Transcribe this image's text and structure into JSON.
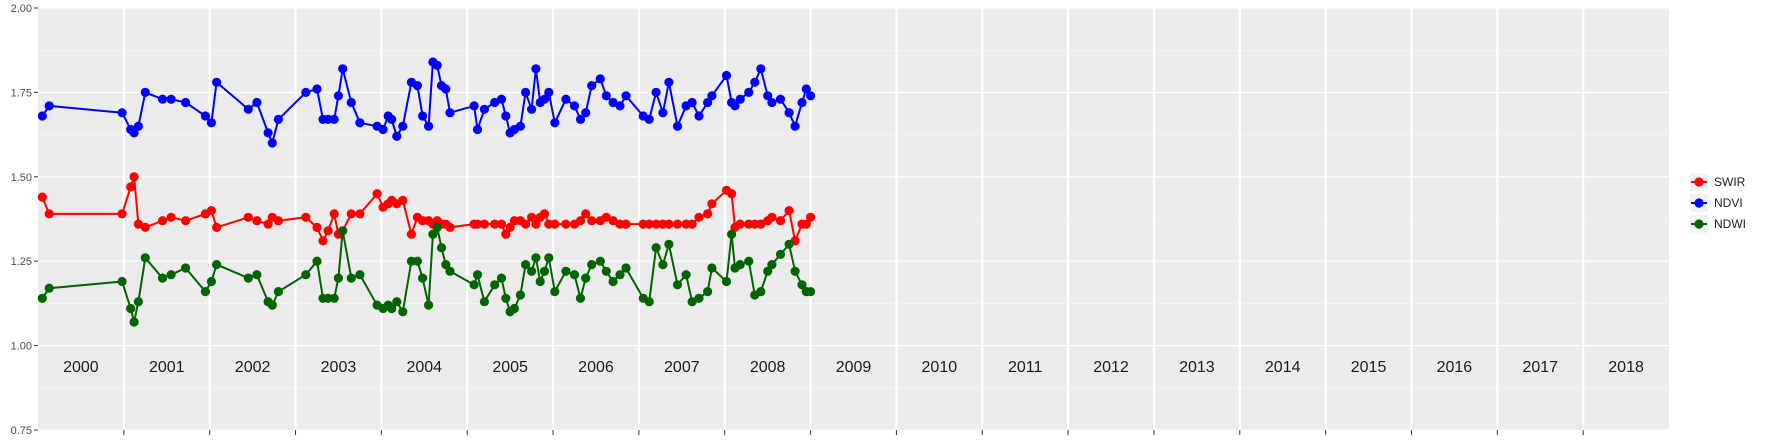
{
  "colors": {
    "panel_bg": "#EBEBEB",
    "grid_major": "#FFFFFF",
    "axis_tick": "#333333",
    "tick_text": "#4D4D4D"
  },
  "chart_data": {
    "type": "line",
    "title": "",
    "xlabel": "",
    "ylabel": "",
    "x_range": [
      2000.0,
      2019.0
    ],
    "ylim": [
      0.75,
      2.0
    ],
    "y_ticks": [
      0.75,
      1.0,
      1.25,
      1.5,
      1.75,
      2.0
    ],
    "y_tick_labels": [
      "0.75",
      "1.00",
      "1.25",
      "1.50",
      "1.75",
      "2.00"
    ],
    "x_year_labels": [
      "2000",
      "2001",
      "2002",
      "2003",
      "2004",
      "2005",
      "2006",
      "2007",
      "2008",
      "2009",
      "2010",
      "2011",
      "2012",
      "2013",
      "2014",
      "2015",
      "2016",
      "2017",
      "2018"
    ],
    "grid": true,
    "legend_position": "right",
    "series": [
      {
        "name": "SWIR",
        "color": "#FF0000",
        "x": [
          2000.05,
          2000.13,
          2000.98,
          2001.08,
          2001.12,
          2001.17,
          2001.25,
          2001.45,
          2001.55,
          2001.72,
          2001.95,
          2002.02,
          2002.08,
          2002.45,
          2002.55,
          2002.68,
          2002.73,
          2002.8,
          2003.12,
          2003.25,
          2003.32,
          2003.38,
          2003.45,
          2003.5,
          2003.55,
          2003.65,
          2003.75,
          2003.95,
          2004.02,
          2004.08,
          2004.12,
          2004.18,
          2004.25,
          2004.35,
          2004.42,
          2004.48,
          2004.55,
          2004.6,
          2004.65,
          2004.7,
          2004.75,
          2004.8,
          2005.08,
          2005.12,
          2005.2,
          2005.32,
          2005.4,
          2005.45,
          2005.5,
          2005.55,
          2005.62,
          2005.68,
          2005.75,
          2005.8,
          2005.85,
          2005.9,
          2005.95,
          2006.02,
          2006.15,
          2006.25,
          2006.32,
          2006.38,
          2006.45,
          2006.55,
          2006.62,
          2006.7,
          2006.78,
          2006.85,
          2007.05,
          2007.12,
          2007.2,
          2007.28,
          2007.35,
          2007.45,
          2007.55,
          2007.62,
          2007.7,
          2007.8,
          2007.85,
          2008.02,
          2008.08,
          2008.12,
          2008.18,
          2008.28,
          2008.35,
          2008.42,
          2008.5,
          2008.55,
          2008.65,
          2008.75,
          2008.82,
          2008.9,
          2008.95,
          2009.0
        ],
        "y": [
          1.44,
          1.39,
          1.39,
          1.47,
          1.5,
          1.36,
          1.35,
          1.37,
          1.38,
          1.37,
          1.39,
          1.4,
          1.35,
          1.38,
          1.37,
          1.36,
          1.38,
          1.37,
          1.38,
          1.35,
          1.31,
          1.34,
          1.39,
          1.33,
          1.34,
          1.39,
          1.39,
          1.45,
          1.41,
          1.42,
          1.43,
          1.42,
          1.43,
          1.33,
          1.38,
          1.37,
          1.37,
          1.36,
          1.37,
          1.36,
          1.36,
          1.35,
          1.36,
          1.36,
          1.36,
          1.36,
          1.36,
          1.33,
          1.35,
          1.37,
          1.37,
          1.36,
          1.38,
          1.36,
          1.38,
          1.39,
          1.36,
          1.36,
          1.36,
          1.36,
          1.37,
          1.39,
          1.37,
          1.37,
          1.38,
          1.37,
          1.36,
          1.36,
          1.36,
          1.36,
          1.36,
          1.36,
          1.36,
          1.36,
          1.36,
          1.36,
          1.38,
          1.39,
          1.42,
          1.46,
          1.45,
          1.35,
          1.36,
          1.36,
          1.36,
          1.36,
          1.37,
          1.38,
          1.37,
          1.4,
          1.31,
          1.36,
          1.36,
          1.38
        ]
      },
      {
        "name": "NDVI",
        "color": "#0000FF",
        "x": [
          2000.05,
          2000.13,
          2000.98,
          2001.08,
          2001.12,
          2001.17,
          2001.25,
          2001.45,
          2001.55,
          2001.72,
          2001.95,
          2002.02,
          2002.08,
          2002.45,
          2002.55,
          2002.68,
          2002.73,
          2002.8,
          2003.12,
          2003.25,
          2003.32,
          2003.38,
          2003.45,
          2003.5,
          2003.55,
          2003.65,
          2003.75,
          2003.95,
          2004.02,
          2004.08,
          2004.12,
          2004.18,
          2004.25,
          2004.35,
          2004.42,
          2004.48,
          2004.55,
          2004.6,
          2004.65,
          2004.7,
          2004.75,
          2004.8,
          2005.08,
          2005.12,
          2005.2,
          2005.32,
          2005.4,
          2005.45,
          2005.5,
          2005.55,
          2005.62,
          2005.68,
          2005.75,
          2005.8,
          2005.85,
          2005.9,
          2005.95,
          2006.02,
          2006.15,
          2006.25,
          2006.32,
          2006.38,
          2006.45,
          2006.55,
          2006.62,
          2006.7,
          2006.78,
          2006.85,
          2007.05,
          2007.12,
          2007.2,
          2007.28,
          2007.35,
          2007.45,
          2007.55,
          2007.62,
          2007.7,
          2007.8,
          2007.85,
          2008.02,
          2008.08,
          2008.12,
          2008.18,
          2008.28,
          2008.35,
          2008.42,
          2008.5,
          2008.55,
          2008.65,
          2008.75,
          2008.82,
          2008.9,
          2008.95,
          2009.0
        ],
        "y": [
          1.68,
          1.71,
          1.69,
          1.64,
          1.63,
          1.65,
          1.75,
          1.73,
          1.73,
          1.72,
          1.68,
          1.66,
          1.78,
          1.7,
          1.72,
          1.63,
          1.6,
          1.67,
          1.75,
          1.76,
          1.67,
          1.67,
          1.67,
          1.74,
          1.82,
          1.72,
          1.66,
          1.65,
          1.64,
          1.68,
          1.67,
          1.62,
          1.65,
          1.78,
          1.77,
          1.68,
          1.65,
          1.84,
          1.83,
          1.77,
          1.76,
          1.69,
          1.71,
          1.64,
          1.7,
          1.72,
          1.73,
          1.68,
          1.63,
          1.64,
          1.65,
          1.75,
          1.7,
          1.82,
          1.72,
          1.73,
          1.75,
          1.66,
          1.73,
          1.71,
          1.67,
          1.69,
          1.77,
          1.79,
          1.74,
          1.72,
          1.71,
          1.74,
          1.68,
          1.67,
          1.75,
          1.69,
          1.78,
          1.65,
          1.71,
          1.72,
          1.68,
          1.72,
          1.74,
          1.8,
          1.72,
          1.71,
          1.73,
          1.75,
          1.78,
          1.82,
          1.74,
          1.72,
          1.73,
          1.69,
          1.65,
          1.72,
          1.76,
          1.74
        ]
      },
      {
        "name": "NDWI",
        "color": "#006400",
        "x": [
          2000.05,
          2000.13,
          2000.98,
          2001.08,
          2001.12,
          2001.17,
          2001.25,
          2001.45,
          2001.55,
          2001.72,
          2001.95,
          2002.02,
          2002.08,
          2002.45,
          2002.55,
          2002.68,
          2002.73,
          2002.8,
          2003.12,
          2003.25,
          2003.32,
          2003.38,
          2003.45,
          2003.5,
          2003.55,
          2003.65,
          2003.75,
          2003.95,
          2004.02,
          2004.08,
          2004.12,
          2004.18,
          2004.25,
          2004.35,
          2004.42,
          2004.48,
          2004.55,
          2004.6,
          2004.65,
          2004.7,
          2004.75,
          2004.8,
          2005.08,
          2005.12,
          2005.2,
          2005.32,
          2005.4,
          2005.45,
          2005.5,
          2005.55,
          2005.62,
          2005.68,
          2005.75,
          2005.8,
          2005.85,
          2005.9,
          2005.95,
          2006.02,
          2006.15,
          2006.25,
          2006.32,
          2006.38,
          2006.45,
          2006.55,
          2006.62,
          2006.7,
          2006.78,
          2006.85,
          2007.05,
          2007.12,
          2007.2,
          2007.28,
          2007.35,
          2007.45,
          2007.55,
          2007.62,
          2007.7,
          2007.8,
          2007.85,
          2008.02,
          2008.08,
          2008.12,
          2008.18,
          2008.28,
          2008.35,
          2008.42,
          2008.5,
          2008.55,
          2008.65,
          2008.75,
          2008.82,
          2008.9,
          2008.95,
          2009.0
        ],
        "y": [
          1.14,
          1.17,
          1.19,
          1.11,
          1.07,
          1.13,
          1.26,
          1.2,
          1.21,
          1.23,
          1.16,
          1.19,
          1.24,
          1.2,
          1.21,
          1.13,
          1.12,
          1.16,
          1.21,
          1.25,
          1.14,
          1.14,
          1.14,
          1.2,
          1.34,
          1.2,
          1.21,
          1.12,
          1.11,
          1.12,
          1.11,
          1.13,
          1.1,
          1.25,
          1.25,
          1.2,
          1.12,
          1.33,
          1.35,
          1.29,
          1.24,
          1.22,
          1.18,
          1.21,
          1.13,
          1.18,
          1.2,
          1.14,
          1.1,
          1.11,
          1.15,
          1.24,
          1.22,
          1.26,
          1.19,
          1.22,
          1.26,
          1.16,
          1.22,
          1.21,
          1.14,
          1.2,
          1.24,
          1.25,
          1.22,
          1.19,
          1.21,
          1.23,
          1.14,
          1.13,
          1.29,
          1.24,
          1.3,
          1.18,
          1.21,
          1.13,
          1.14,
          1.16,
          1.23,
          1.19,
          1.33,
          1.23,
          1.24,
          1.25,
          1.15,
          1.16,
          1.22,
          1.24,
          1.27,
          1.3,
          1.22,
          1.18,
          1.16,
          1.16
        ]
      }
    ]
  }
}
